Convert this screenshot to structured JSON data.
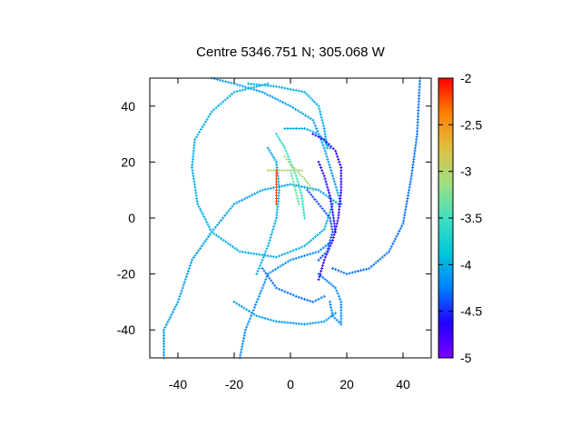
{
  "chart_data": {
    "type": "scatter",
    "title": "Centre 5346.751 N; 305.068  W",
    "xlabel": "",
    "ylabel": "",
    "xlim": [
      -50,
      50
    ],
    "ylim": [
      -50,
      50
    ],
    "xticks": [
      -40,
      -20,
      0,
      20,
      40
    ],
    "yticks": [
      -40,
      -20,
      0,
      20,
      40
    ],
    "grid": false,
    "colorbar": {
      "range": [
        -5,
        -2
      ],
      "ticks": [
        -2,
        -2.5,
        -3,
        -3.5,
        -4,
        -4.5,
        -5
      ],
      "palette": [
        "#7a00ff",
        "#2200ff",
        "#0080ff",
        "#00c8d8",
        "#40e0c0",
        "#a0e080",
        "#e0c040",
        "#ff8000",
        "#ff0000"
      ]
    },
    "tracks": [
      {
        "value": -4.1,
        "points": [
          [
            -45,
            -50
          ],
          [
            -45,
            -40
          ],
          [
            -40,
            -30
          ],
          [
            -35,
            -15
          ],
          [
            -28,
            -5
          ],
          [
            -20,
            5
          ],
          [
            -10,
            10
          ],
          [
            0,
            12
          ],
          [
            10,
            10
          ],
          [
            17,
            5
          ]
        ]
      },
      {
        "value": -4.2,
        "points": [
          [
            -18,
            -50
          ],
          [
            -16,
            -40
          ],
          [
            -12,
            -30
          ],
          [
            -8,
            -20
          ],
          [
            0,
            -15
          ],
          [
            10,
            -12
          ],
          [
            15,
            -8
          ]
        ]
      },
      {
        "value": -4.1,
        "points": [
          [
            -28,
            50
          ],
          [
            -20,
            48
          ],
          [
            -10,
            45
          ],
          [
            0,
            40
          ],
          [
            8,
            35
          ],
          [
            12,
            25
          ],
          [
            15,
            15
          ],
          [
            18,
            5
          ]
        ]
      },
      {
        "value": -4.0,
        "points": [
          [
            -8,
            48
          ],
          [
            -20,
            45
          ],
          [
            -28,
            38
          ],
          [
            -34,
            28
          ],
          [
            -35,
            18
          ],
          [
            -33,
            5
          ],
          [
            -28,
            -5
          ],
          [
            -18,
            -12
          ],
          [
            -5,
            -14
          ],
          [
            5,
            -10
          ],
          [
            12,
            -4
          ],
          [
            15,
            5
          ]
        ]
      },
      {
        "value": -4.0,
        "points": [
          [
            -15,
            48
          ],
          [
            -5,
            47
          ],
          [
            5,
            45
          ],
          [
            10,
            40
          ],
          [
            12,
            32
          ],
          [
            13,
            25
          ]
        ]
      },
      {
        "value": -4.0,
        "points": [
          [
            -2,
            32
          ],
          [
            5,
            32
          ],
          [
            10,
            30
          ],
          [
            14,
            25
          ]
        ]
      },
      {
        "value": -4.3,
        "points": [
          [
            -10,
            -18
          ],
          [
            -5,
            -25
          ],
          [
            2,
            -28
          ],
          [
            8,
            -30
          ],
          [
            12,
            -28
          ]
        ]
      },
      {
        "value": -4.1,
        "points": [
          [
            -20,
            -30
          ],
          [
            -12,
            -35
          ],
          [
            -5,
            -37
          ],
          [
            5,
            -38
          ],
          [
            12,
            -37
          ],
          [
            16,
            -34
          ]
        ]
      },
      {
        "value": -4.2,
        "points": [
          [
            10,
            -20
          ],
          [
            16,
            -25
          ],
          [
            18,
            -30
          ],
          [
            18,
            -38
          ],
          [
            15,
            -35
          ],
          [
            14,
            -30
          ]
        ]
      },
      {
        "value": -4.3,
        "points": [
          [
            15,
            -18
          ],
          [
            20,
            -20
          ],
          [
            28,
            -18
          ],
          [
            35,
            -12
          ],
          [
            40,
            -2
          ],
          [
            43,
            15
          ],
          [
            45,
            30
          ],
          [
            46,
            50
          ]
        ]
      },
      {
        "value": -3.6,
        "points": [
          [
            -5,
            30
          ],
          [
            -2,
            25
          ],
          [
            0,
            20
          ],
          [
            2,
            15
          ],
          [
            4,
            8
          ],
          [
            5,
            0
          ]
        ]
      },
      {
        "value": -4.0,
        "points": [
          [
            -8,
            25
          ],
          [
            -5,
            20
          ],
          [
            -4,
            10
          ],
          [
            -5,
            0
          ],
          [
            -8,
            -10
          ],
          [
            -12,
            -20
          ]
        ]
      },
      {
        "value": -4.7,
        "points": [
          [
            8,
            30
          ],
          [
            12,
            28
          ],
          [
            16,
            24
          ],
          [
            18,
            18
          ],
          [
            18,
            10
          ],
          [
            17,
            0
          ],
          [
            15,
            -8
          ],
          [
            12,
            -15
          ],
          [
            10,
            -22
          ]
        ]
      },
      {
        "value": -4.6,
        "points": [
          [
            10,
            20
          ],
          [
            12,
            15
          ],
          [
            14,
            8
          ],
          [
            15,
            2
          ],
          [
            16,
            -5
          ]
        ]
      },
      {
        "value": -4.4,
        "points": [
          [
            6,
            10
          ],
          [
            10,
            5
          ],
          [
            14,
            0
          ],
          [
            15,
            -5
          ],
          [
            13,
            -12
          ],
          [
            10,
            -15
          ]
        ]
      },
      {
        "value": -3.0,
        "points": [
          [
            -8,
            17
          ],
          [
            -4,
            17
          ],
          [
            0,
            17
          ],
          [
            4,
            17
          ]
        ]
      },
      {
        "value": -2.2,
        "points": [
          [
            -5,
            17
          ],
          [
            -5,
            13
          ],
          [
            -5,
            9
          ],
          [
            -5,
            5
          ]
        ]
      },
      {
        "value": -3.3,
        "points": [
          [
            0,
            17
          ],
          [
            1,
            13
          ],
          [
            2,
            9
          ],
          [
            3,
            5
          ]
        ]
      },
      {
        "value": -3.1,
        "points": [
          [
            -2,
            22
          ],
          [
            0,
            19
          ],
          [
            2,
            17
          ],
          [
            5,
            14
          ],
          [
            8,
            10
          ]
        ]
      }
    ]
  }
}
